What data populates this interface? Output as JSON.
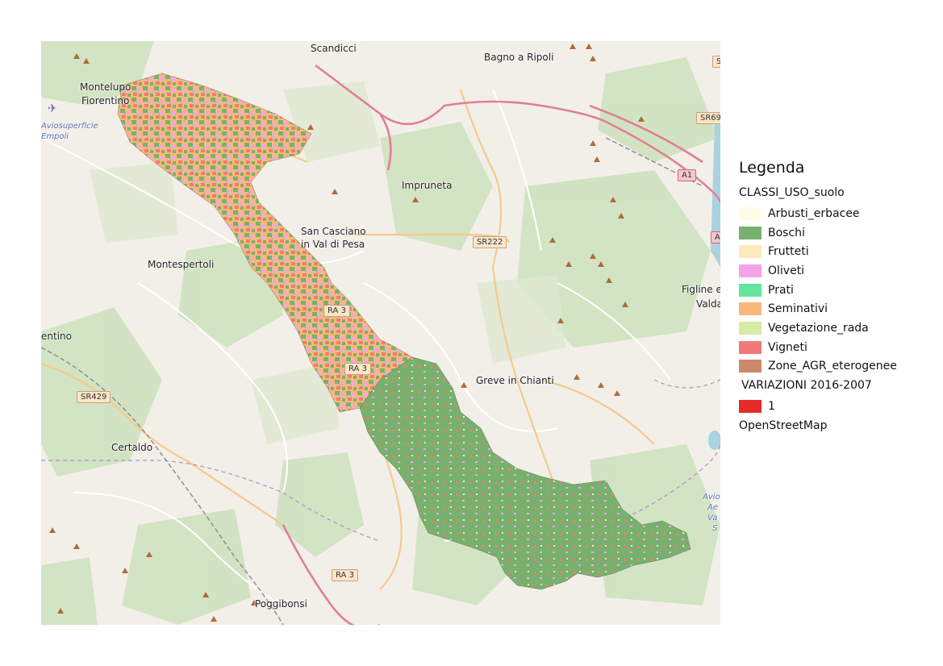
{
  "map": {
    "places": [
      {
        "id": "scandicci",
        "name": "Scandicci"
      },
      {
        "id": "bagno-a-ripoli",
        "name": "Bagno a Ripoli"
      },
      {
        "id": "montelupo-1",
        "name": "Montelupo"
      },
      {
        "id": "montelupo-2",
        "name": "Fiorentino"
      },
      {
        "id": "impruneta",
        "name": "Impruneta"
      },
      {
        "id": "san-casciano-1",
        "name": "San Casciano"
      },
      {
        "id": "san-casciano-2",
        "name": "in Val di Pesa"
      },
      {
        "id": "montespertoli",
        "name": "Montespertoli"
      },
      {
        "id": "figline-1",
        "name": "Figline e"
      },
      {
        "id": "figline-2",
        "name": "Valda"
      },
      {
        "id": "entino",
        "name": "entino"
      },
      {
        "id": "greve",
        "name": "Greve in Chianti"
      },
      {
        "id": "certaldo",
        "name": "Certaldo"
      },
      {
        "id": "poggibonsi",
        "name": "Poggibonsi"
      }
    ],
    "italic_labels": [
      {
        "id": "aviosuperficie-1",
        "name": "Aviosuperficie"
      },
      {
        "id": "aviosuperficie-2",
        "name": "Empoli"
      },
      {
        "id": "avio-right-1",
        "name": "Avios"
      },
      {
        "id": "avio-right-2",
        "name": "Ae"
      },
      {
        "id": "avio-right-3",
        "name": "Va"
      },
      {
        "id": "avio-right-4",
        "name": "S"
      }
    ],
    "road_shields": [
      {
        "id": "sr222",
        "label": "SR222",
        "kind": "regional"
      },
      {
        "id": "sr429",
        "label": "SR429",
        "kind": "regional"
      },
      {
        "id": "sr69",
        "label": "SR69",
        "kind": "regional"
      },
      {
        "id": "a1",
        "label": "A1",
        "kind": "motorway"
      },
      {
        "id": "a1-edge",
        "label": "A",
        "kind": "motorway"
      },
      {
        "id": "ra3-1",
        "label": "RA 3",
        "kind": "regional"
      },
      {
        "id": "ra3-2",
        "label": "RA 3",
        "kind": "regional"
      },
      {
        "id": "ra3-3",
        "label": "RA 3",
        "kind": "regional"
      },
      {
        "id": "s-edge",
        "label": "S",
        "kind": "regional"
      }
    ]
  },
  "legend": {
    "title": "Legenda",
    "group_title": "CLASSI_USO_suolo",
    "classes": [
      {
        "label": "Arbusti_erbacee",
        "color": "#fffde6"
      },
      {
        "label": "Boschi",
        "color": "#78b06e"
      },
      {
        "label": "Frutteti",
        "color": "#fde9be"
      },
      {
        "label": "Oliveti",
        "color": "#f5a3e6"
      },
      {
        "label": "Prati",
        "color": "#62e59e"
      },
      {
        "label": "Seminativi",
        "color": "#f7b87a"
      },
      {
        "label": "Vegetazione_rada",
        "color": "#d6eba6"
      },
      {
        "label": "Vigneti",
        "color": "#f07a7a"
      },
      {
        "label": "Zone_AGR_eterogenee",
        "color": "#c9896a"
      }
    ],
    "variations_title": "VARIAZIONI 2016-2007",
    "variations": [
      {
        "label": "1",
        "color": "#e42a2a"
      }
    ],
    "basemap_label": "OpenStreetMap"
  },
  "colors": {
    "map_background": "#f2efe9",
    "forest": "#c8dfb8",
    "motorway": "#e892a2",
    "trunk": "#f6c98c",
    "river": "#aad3df"
  }
}
